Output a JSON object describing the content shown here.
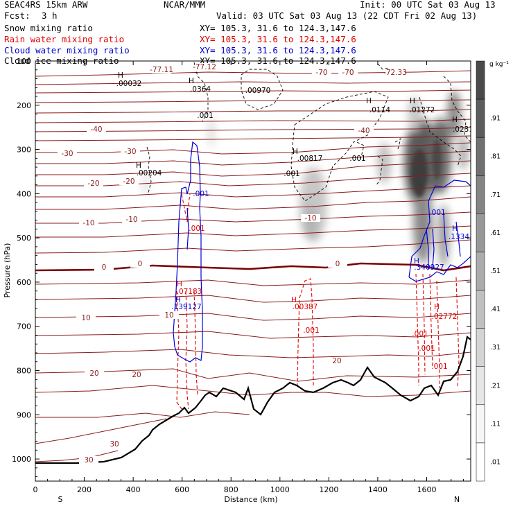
{
  "header": {
    "model": "SEAC4RS 15km ARW",
    "center": "NCAR/MMM",
    "init": "Init: 00 UTC Sat 03 Aug 13",
    "fcst_label": "Fcst:",
    "fcst_value": "3 h",
    "valid": "Valid: 03 UTC Sat 03 Aug 13 (22 CDT Fri 02 Aug 13)"
  },
  "fields": [
    {
      "label": "Snow mixing ratio",
      "xy": "XY= 105.3, 31.6 to 124.3,147.6",
      "color": "#000000"
    },
    {
      "label": "Rain water mixing ratio",
      "xy": "XY= 105.3, 31.6 to 124.3,147.6",
      "color": "#ff0000"
    },
    {
      "label": "Cloud water mixing ratio",
      "xy": "XY= 105.3, 31.6 to 124.3,147.6",
      "color": "#0000ff"
    },
    {
      "label": "Cloud ice mixing ratio",
      "xy": "XY= 105.3, 31.6 to 124.3,147.6",
      "color": "#000000"
    }
  ],
  "colorbar": {
    "unit": "g kg⁻¹",
    "labels": [
      ".91",
      ".81",
      ".71",
      ".61",
      ".51",
      ".41",
      ".31",
      ".21",
      ".11",
      ".01"
    ],
    "shades": [
      "#4a4a4a",
      "#5c5c5c",
      "#707070",
      "#848484",
      "#989898",
      "#acacac",
      "#c0c0c0",
      "#d4d4d4",
      "#e6e6e6",
      "#f6f6f6",
      "#ffffff"
    ]
  },
  "chart_data": {
    "type": "cross-section",
    "xlabel": "Distance (km)",
    "ylabel": "Pressure (hPa)",
    "xlim": [
      0,
      1780
    ],
    "ylim": [
      1050,
      100
    ],
    "x_ticks": [
      "0",
      "200",
      "400",
      "600",
      "800",
      "1000",
      "1200",
      "1400",
      "1600"
    ],
    "x_tick_values": [
      0,
      200,
      400,
      600,
      800,
      1000,
      1200,
      1400,
      1600
    ],
    "y_ticks": [
      "100",
      "200",
      "300",
      "400",
      "500",
      "600",
      "700",
      "800",
      "900",
      "1000"
    ],
    "y_tick_values": [
      100,
      200,
      300,
      400,
      500,
      600,
      700,
      800,
      900,
      1000
    ],
    "direction_left": "S",
    "direction_right": "N",
    "temperature_labels": [
      "-77.11",
      "-77.12",
      "-72.33",
      "-70",
      "-70",
      "-40",
      "-40",
      "-30",
      "-30",
      "-20",
      "-20",
      "-10",
      "-10",
      "-10",
      "0",
      "0",
      "0",
      "10",
      "10",
      "20",
      "20",
      "20",
      "30",
      "30"
    ],
    "mixing_ratio_labels": [
      {
        "text": "H",
        "color": "black"
      },
      {
        "text": ".00032",
        "color": "black"
      },
      {
        "text": "H",
        "color": "black"
      },
      {
        "text": ".0364",
        "color": "black"
      },
      {
        "text": ".00970",
        "color": "black"
      },
      {
        "text": ".001",
        "color": "black"
      },
      {
        "text": "H",
        "color": "black"
      },
      {
        "text": ".00204",
        "color": "black"
      },
      {
        "text": "H",
        "color": "black"
      },
      {
        "text": ".00817",
        "color": "black"
      },
      {
        "text": ".001",
        "color": "black"
      },
      {
        "text": ".001",
        "color": "black"
      },
      {
        "text": "H",
        "color": "black"
      },
      {
        "text": ".0114",
        "color": "black"
      },
      {
        "text": "H",
        "color": "black"
      },
      {
        "text": ".01272",
        "color": "black"
      },
      {
        "text": "H",
        "color": "black"
      },
      {
        "text": ".0231",
        "color": "black"
      },
      {
        "text": ".001",
        "color": "blue"
      },
      {
        "text": ".001",
        "color": "red"
      },
      {
        "text": "H",
        "color": "red"
      },
      {
        "text": ".07183",
        "color": "red"
      },
      {
        "text": "H",
        "color": "blue"
      },
      {
        "text": ".139127",
        "color": "blue"
      },
      {
        "text": "H",
        "color": "red"
      },
      {
        "text": ".00387",
        "color": "red"
      },
      {
        "text": ".001",
        "color": "red"
      },
      {
        "text": ".001",
        "color": "blue"
      },
      {
        "text": "H",
        "color": "blue"
      },
      {
        "text": ".1334",
        "color": "blue"
      },
      {
        "text": "H",
        "color": "blue"
      },
      {
        "text": ".340927",
        "color": "blue"
      },
      {
        "text": ".001",
        "color": "red"
      },
      {
        "text": ".001",
        "color": "red"
      },
      {
        "text": "H",
        "color": "red"
      },
      {
        "text": ".02772",
        "color": "red"
      },
      {
        "text": ".001",
        "color": "red"
      }
    ]
  }
}
